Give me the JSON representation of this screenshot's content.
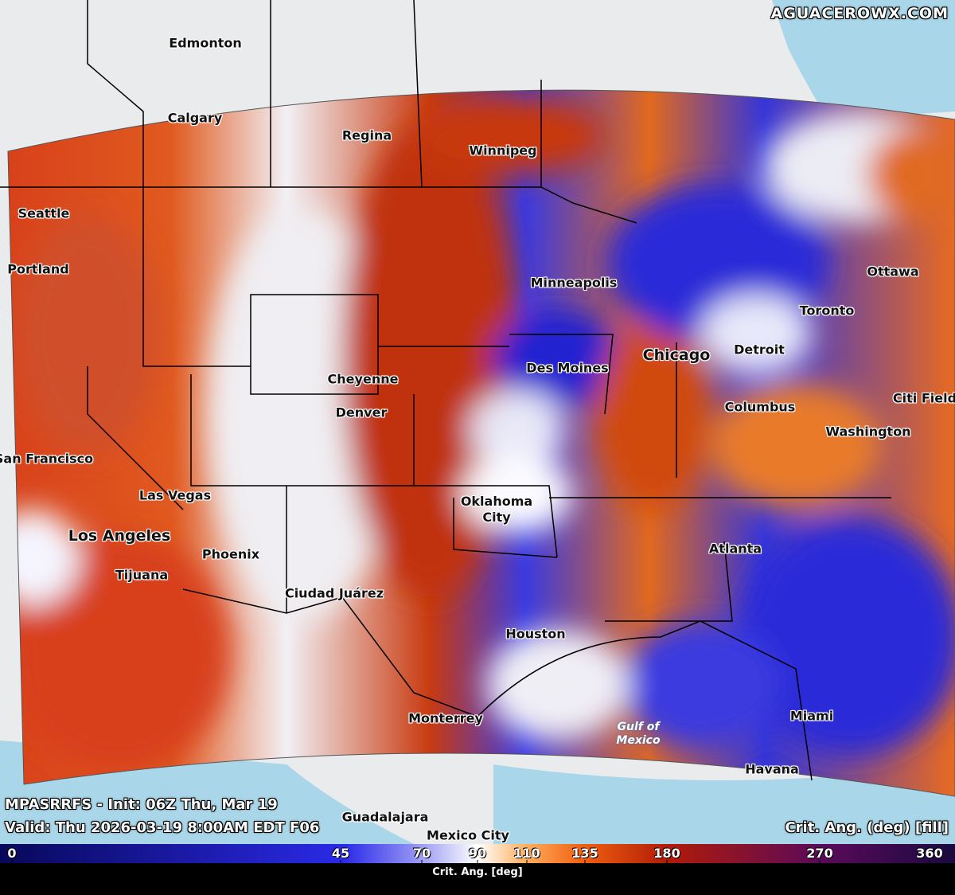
{
  "header": {
    "brand": "AGUACEROWX.COM"
  },
  "info": {
    "model_line": "MPASRRFS - Init: 06Z Thu, Mar 19",
    "valid_line": "Valid: Thu 2026-03-19 8:00AM EDT F06",
    "field": "Crit. Ang. (deg) [fill]"
  },
  "map": {
    "cities": [
      "Edmonton",
      "Calgary",
      "Regina",
      "Winnipeg",
      "Seattle",
      "Portland",
      "Minneapolis",
      "Ottawa",
      "Toronto",
      "Chicago",
      "Detroit",
      "Des Moines",
      "Cheyenne",
      "Denver",
      "Columbus",
      "Citi Field",
      "Washington",
      "San Francisco",
      "Las Vegas",
      "Oklahoma City",
      "Los Angeles",
      "Phoenix",
      "Atlanta",
      "Tijuana",
      "Ciudad Juárez",
      "Houston",
      "Monterrey",
      "Miami",
      "Havana",
      "Guadalajara",
      "Mexico City"
    ],
    "water_label": [
      "Gulf of",
      "Mexico"
    ]
  },
  "colorbar": {
    "label": "Crit. Ang. [deg]",
    "ticks": [
      0,
      45,
      70,
      90,
      110,
      135,
      180,
      270,
      360
    ]
  }
}
